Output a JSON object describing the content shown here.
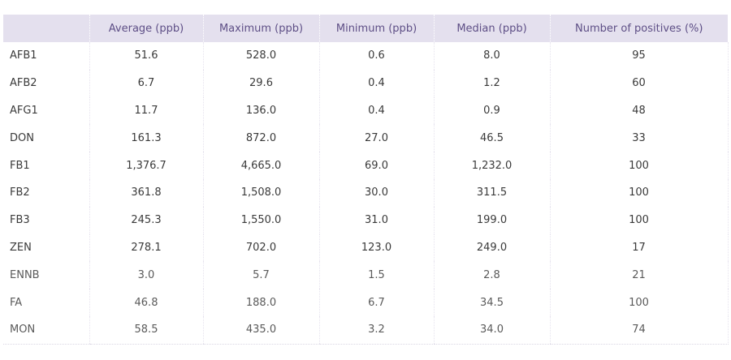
{
  "table": {
    "headers": [
      "",
      "Average (ppb)",
      "Maximum (ppb)",
      "Minimum (ppb)",
      "Median (ppb)",
      "Number of positives (%)"
    ],
    "rows": [
      [
        "AFB1",
        "51.6",
        "528.0",
        "0.6",
        "8.0",
        "95"
      ],
      [
        "AFB2",
        "6.7",
        "29.6",
        "0.4",
        "1.2",
        "60"
      ],
      [
        "AFG1",
        "11.7",
        "136.0",
        "0.4",
        "0.9",
        "48"
      ],
      [
        "DON",
        "161.3",
        "872.0",
        "27.0",
        "46.5",
        "33"
      ],
      [
        "FB1",
        "1,376.7",
        "4,665.0",
        "69.0",
        "1,232.0",
        "100"
      ],
      [
        "FB2",
        "361.8",
        "1,508.0",
        "30.0",
        "311.5",
        "100"
      ],
      [
        "FB3",
        "245.3",
        "1,550.0",
        "31.0",
        "199.0",
        "100"
      ],
      [
        "ZEN",
        "278.1",
        "702.0",
        "123.0",
        "249.0",
        "17"
      ],
      [
        "ENNB",
        "3.0",
        "5.7",
        "1.5",
        "2.8",
        "21"
      ],
      [
        "FA",
        "46.8",
        "188.0",
        "6.7",
        "34.5",
        "100"
      ],
      [
        "MON",
        "58.5",
        "435.0",
        "3.2",
        "34.0",
        "74"
      ]
    ]
  },
  "colors": {
    "header_background": "#e4e0ee",
    "header_text": "#5e4f86",
    "body_text": "#3a3a3a"
  }
}
